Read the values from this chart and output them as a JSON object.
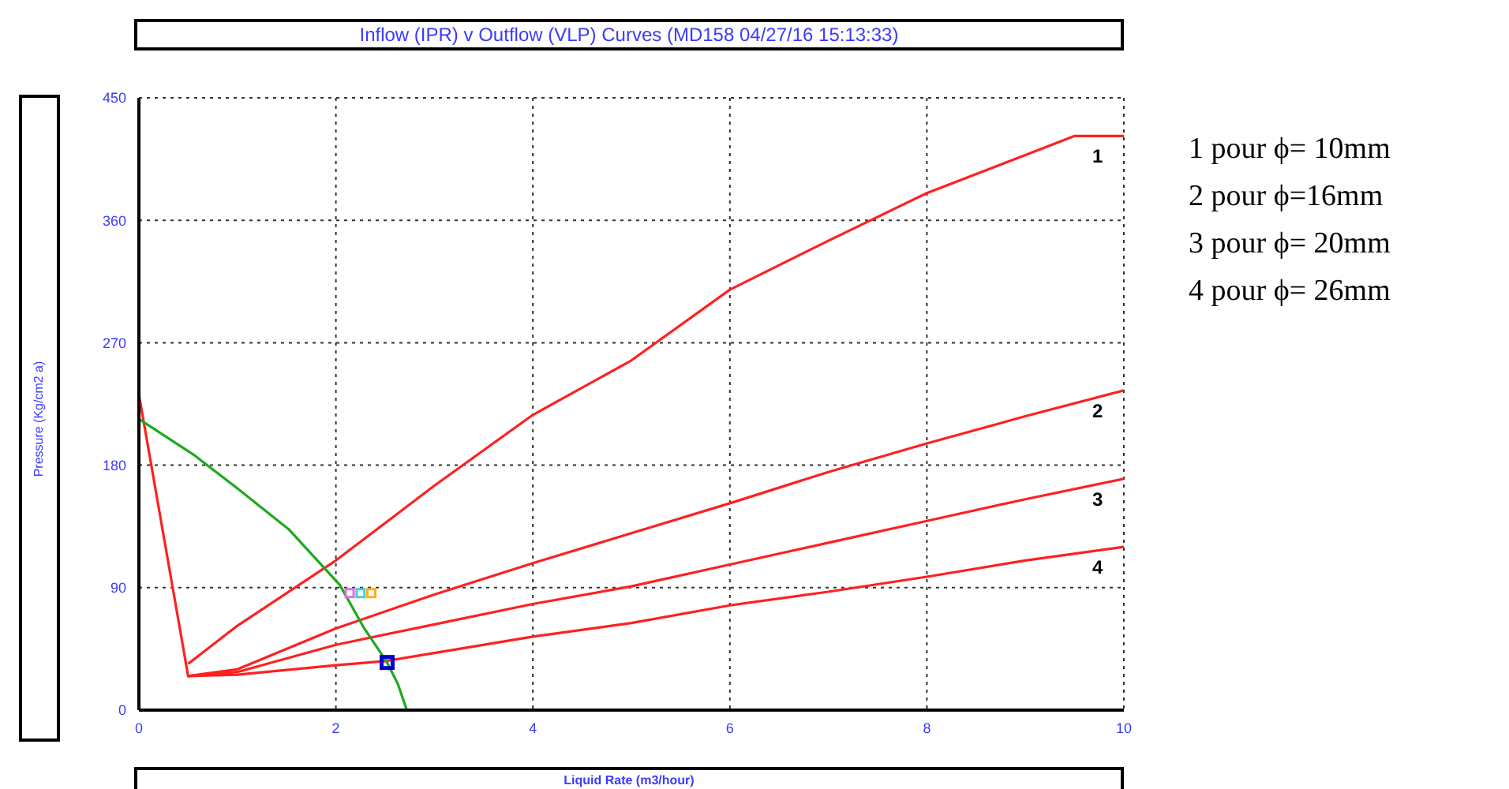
{
  "chart_data": {
    "type": "line",
    "title": "Inflow (IPR) v Outflow (VLP) Curves (MD158 04/27/16 15:13:33)",
    "xlabel": "Liquid Rate  (m3/hour)",
    "ylabel": "Pressure  (Kg/cm2 a)",
    "xlim": [
      0,
      10
    ],
    "xticks": [
      0,
      2,
      4,
      6,
      8,
      10
    ],
    "ylim": [
      0,
      450
    ],
    "yticks": [
      0,
      90,
      180,
      270,
      360,
      450
    ],
    "grid": true,
    "legend": false,
    "marker": "none",
    "line_style": "solid",
    "series": [
      {
        "name": "1",
        "color": "#ff2020",
        "x": [
          0.5,
          1,
          2,
          3,
          4,
          5,
          6,
          7,
          8,
          9,
          9.5,
          10
        ],
        "values": [
          34,
          62,
          110,
          165,
          217,
          257,
          309,
          345,
          380,
          408,
          422,
          422
        ]
      },
      {
        "name": "2",
        "color": "#ff2020",
        "x": [
          0.5,
          1,
          2,
          3,
          4,
          5,
          6,
          7,
          8,
          9,
          10
        ],
        "values": [
          25,
          30,
          60,
          85,
          108,
          130,
          152,
          175,
          196,
          216,
          235
        ]
      },
      {
        "name": "3",
        "color": "#ff2020",
        "x": [
          0.5,
          1,
          2,
          3,
          4,
          5,
          6,
          7,
          8,
          9,
          10
        ],
        "values": [
          25,
          28,
          48,
          63,
          78,
          91,
          107,
          123,
          139,
          155,
          170
        ]
      },
      {
        "name": "4",
        "color": "#ff2020",
        "x": [
          0,
          0.5,
          1,
          2,
          2.5,
          3,
          4,
          5,
          6,
          7,
          8,
          9,
          10
        ],
        "values": [
          232,
          25,
          26,
          33,
          36,
          42,
          54,
          64,
          77,
          87,
          98,
          110,
          120
        ]
      },
      {
        "color": "#1fa81f",
        "x": [
          0,
          0.55,
          1,
          1.52,
          2.04,
          2.28,
          2.52,
          2.63,
          2.72
        ],
        "values": [
          214,
          188,
          163,
          133,
          92,
          61,
          35,
          19,
          0
        ]
      },
      {
        "type": "scatter",
        "color": "#0000cc",
        "marker": "square",
        "x": [
          2.52
        ],
        "values": [
          35
        ]
      },
      {
        "type": "scatter",
        "marker": "square",
        "colors": [
          "#e070e0",
          "#40d0e0",
          "#ffb020"
        ],
        "x": [
          2.14,
          2.25,
          2.36
        ],
        "values": [
          86,
          86,
          86
        ]
      }
    ],
    "annotations": [
      "1 pour ϕ= 10mm",
      "2 pour ϕ=16mm",
      "3 pour ϕ= 20mm",
      "4 pour ϕ= 26mm"
    ]
  }
}
